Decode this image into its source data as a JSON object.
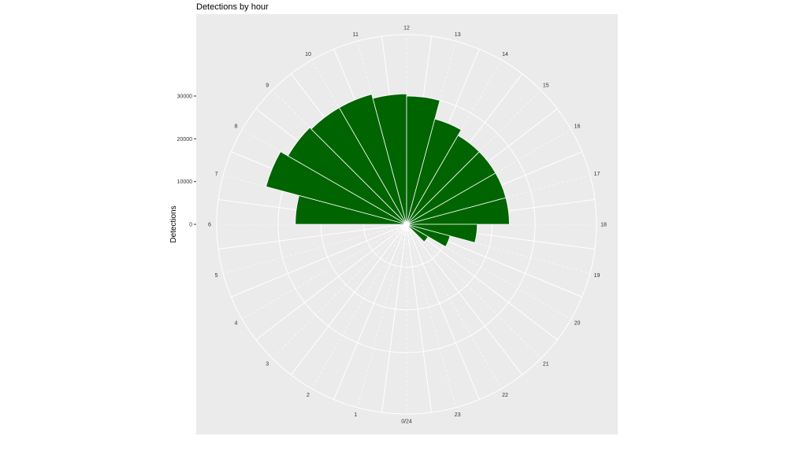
{
  "chart_data": {
    "type": "bar",
    "coord": "polar",
    "title": "Detections by hour",
    "xlabel": "",
    "ylabel": "Detections",
    "ylim": [
      0,
      45000
    ],
    "y_ticks": [
      0,
      10000,
      20000,
      30000
    ],
    "hour_labels": [
      "0/24",
      "1",
      "2",
      "3",
      "4",
      "5",
      "6",
      "7",
      "8",
      "9",
      "10",
      "11",
      "12",
      "13",
      "14",
      "15",
      "16",
      "17",
      "18",
      "19",
      "20",
      "21",
      "22",
      "23"
    ],
    "categories": [
      "6",
      "7",
      "8",
      "9",
      "10",
      "11",
      "12",
      "13",
      "14",
      "15",
      "16",
      "17",
      "18",
      "19",
      "20"
    ],
    "values": [
      26000,
      34000,
      32000,
      31500,
      31500,
      30500,
      30000,
      25500,
      24000,
      24000,
      24000,
      24000,
      16500,
      10500,
      5800
    ],
    "bar_color": "#006400",
    "panel_color": "#EBEBEB",
    "grid_color": "#FFFFFF",
    "grid": true,
    "legend": "none"
  }
}
